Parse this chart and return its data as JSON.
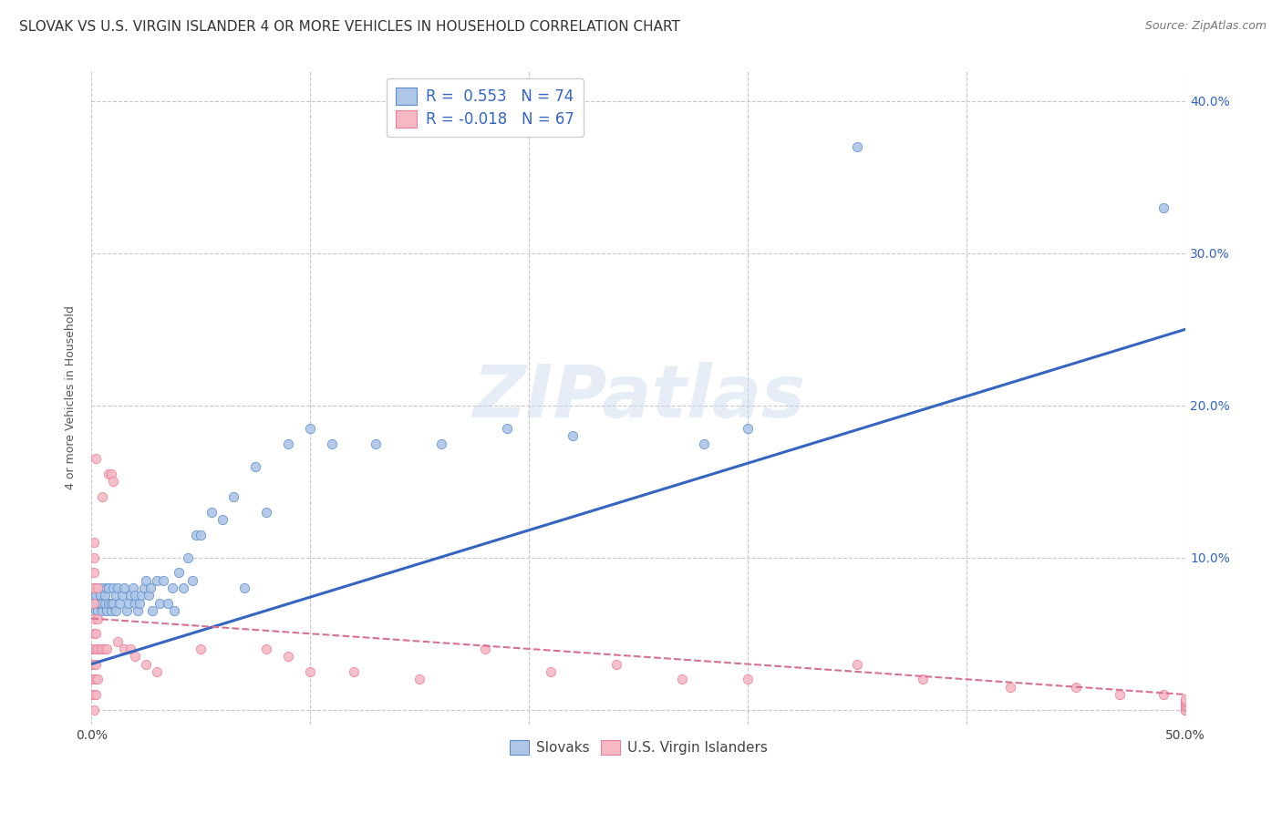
{
  "title": "SLOVAK VS U.S. VIRGIN ISLANDER 4 OR MORE VEHICLES IN HOUSEHOLD CORRELATION CHART",
  "source": "Source: ZipAtlas.com",
  "ylabel": "4 or more Vehicles in Household",
  "xlim": [
    0.0,
    0.5
  ],
  "ylim": [
    -0.01,
    0.42
  ],
  "xticks": [
    0.0,
    0.1,
    0.2,
    0.3,
    0.4,
    0.5
  ],
  "yticks": [
    0.0,
    0.1,
    0.2,
    0.3,
    0.4
  ],
  "xticklabels_edge": [
    "0.0%",
    "",
    "",
    "",
    "",
    "50.0%"
  ],
  "yticklabels_right": [
    "",
    "10.0%",
    "20.0%",
    "30.0%",
    "40.0%"
  ],
  "background_color": "#ffffff",
  "grid_color": "#c8c8c8",
  "slovak_color": "#aec6e8",
  "usvi_color": "#f5b8c4",
  "slovak_edge_color": "#5b8dc8",
  "usvi_edge_color": "#e8809a",
  "slovak_line_color": "#3465c0",
  "usvi_line_color": "#d87090",
  "title_fontsize": 11,
  "source_fontsize": 9,
  "axis_label_fontsize": 9,
  "tick_fontsize": 10,
  "legend_color": "#3465c0",
  "legend_fontsize": 12,
  "watermark": "ZIPatlas",
  "R_slovak": 0.553,
  "N_slovak": 74,
  "R_usvi": -0.018,
  "N_usvi": 67,
  "slovak_line_x": [
    0.0,
    0.5
  ],
  "slovak_line_y": [
    0.03,
    0.25
  ],
  "usvi_line_x": [
    0.0,
    0.5
  ],
  "usvi_line_y": [
    0.06,
    0.01
  ],
  "slovak_scatter_x": [
    0.001,
    0.001,
    0.001,
    0.002,
    0.002,
    0.002,
    0.002,
    0.003,
    0.003,
    0.003,
    0.004,
    0.004,
    0.005,
    0.005,
    0.005,
    0.006,
    0.006,
    0.007,
    0.007,
    0.008,
    0.008,
    0.009,
    0.009,
    0.01,
    0.01,
    0.011,
    0.011,
    0.012,
    0.013,
    0.014,
    0.015,
    0.016,
    0.017,
    0.018,
    0.019,
    0.02,
    0.02,
    0.021,
    0.022,
    0.023,
    0.024,
    0.025,
    0.026,
    0.027,
    0.028,
    0.03,
    0.031,
    0.033,
    0.035,
    0.037,
    0.038,
    0.04,
    0.042,
    0.044,
    0.046,
    0.048,
    0.05,
    0.055,
    0.06,
    0.065,
    0.07,
    0.075,
    0.08,
    0.09,
    0.1,
    0.11,
    0.13,
    0.16,
    0.19,
    0.22,
    0.28,
    0.3,
    0.35,
    0.49
  ],
  "slovak_scatter_y": [
    0.07,
    0.075,
    0.08,
    0.065,
    0.07,
    0.075,
    0.08,
    0.065,
    0.07,
    0.08,
    0.07,
    0.075,
    0.065,
    0.07,
    0.08,
    0.07,
    0.075,
    0.065,
    0.08,
    0.07,
    0.08,
    0.065,
    0.07,
    0.07,
    0.08,
    0.065,
    0.075,
    0.08,
    0.07,
    0.075,
    0.08,
    0.065,
    0.07,
    0.075,
    0.08,
    0.07,
    0.075,
    0.065,
    0.07,
    0.075,
    0.08,
    0.085,
    0.075,
    0.08,
    0.065,
    0.085,
    0.07,
    0.085,
    0.07,
    0.08,
    0.065,
    0.09,
    0.08,
    0.1,
    0.085,
    0.115,
    0.115,
    0.13,
    0.125,
    0.14,
    0.08,
    0.16,
    0.13,
    0.175,
    0.185,
    0.175,
    0.175,
    0.175,
    0.185,
    0.18,
    0.175,
    0.185,
    0.37,
    0.33
  ],
  "usvi_scatter_x": [
    0.0,
    0.0,
    0.0,
    0.0,
    0.001,
    0.001,
    0.001,
    0.001,
    0.001,
    0.001,
    0.001,
    0.001,
    0.001,
    0.001,
    0.001,
    0.001,
    0.002,
    0.002,
    0.002,
    0.002,
    0.002,
    0.002,
    0.003,
    0.003,
    0.003,
    0.003,
    0.004,
    0.005,
    0.005,
    0.006,
    0.007,
    0.008,
    0.009,
    0.01,
    0.012,
    0.015,
    0.018,
    0.02,
    0.025,
    0.03,
    0.05,
    0.08,
    0.09,
    0.1,
    0.12,
    0.15,
    0.18,
    0.21,
    0.24,
    0.27,
    0.3,
    0.35,
    0.38,
    0.42,
    0.45,
    0.47,
    0.49,
    0.5,
    0.5,
    0.5,
    0.5,
    0.5,
    0.5,
    0.5,
    0.5,
    0.5,
    0.5
  ],
  "usvi_scatter_y": [
    0.01,
    0.02,
    0.03,
    0.04,
    0.0,
    0.01,
    0.02,
    0.03,
    0.04,
    0.05,
    0.06,
    0.07,
    0.08,
    0.09,
    0.1,
    0.11,
    0.01,
    0.02,
    0.03,
    0.04,
    0.05,
    0.165,
    0.02,
    0.04,
    0.06,
    0.08,
    0.04,
    0.04,
    0.14,
    0.04,
    0.04,
    0.155,
    0.155,
    0.15,
    0.045,
    0.04,
    0.04,
    0.035,
    0.03,
    0.025,
    0.04,
    0.04,
    0.035,
    0.025,
    0.025,
    0.02,
    0.04,
    0.025,
    0.03,
    0.02,
    0.02,
    0.03,
    0.02,
    0.015,
    0.015,
    0.01,
    0.01,
    0.005,
    0.0,
    0.0,
    0.0,
    0.002,
    0.003,
    0.004,
    0.005,
    0.006,
    0.007
  ]
}
